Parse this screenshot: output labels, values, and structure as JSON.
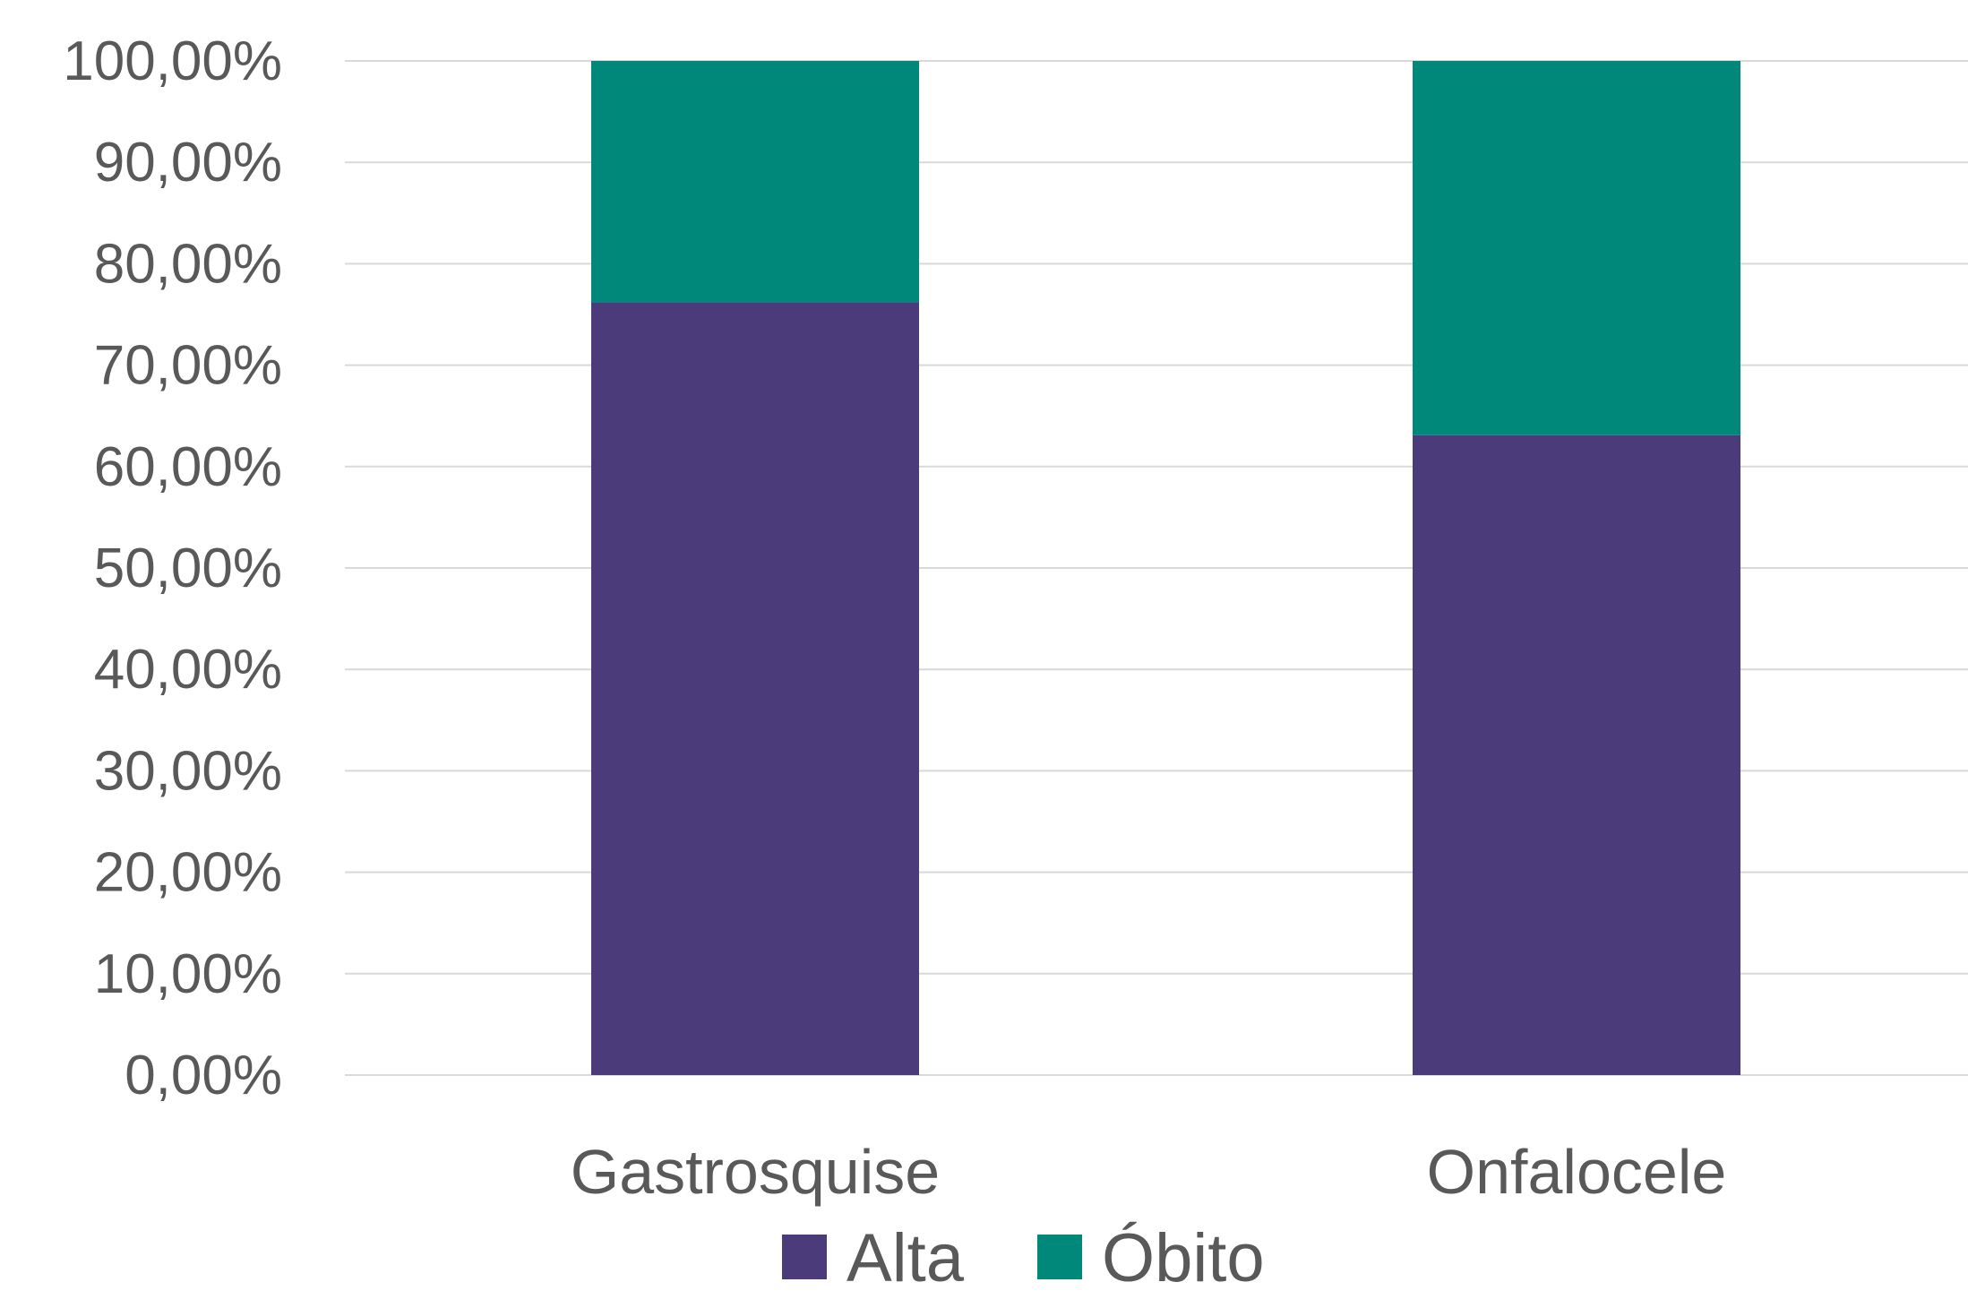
{
  "chart_data": {
    "type": "bar",
    "stacked": true,
    "categories": [
      "Gastrosquise",
      "Onfalocele"
    ],
    "series": [
      {
        "name": "Alta",
        "values": [
          76.2,
          63.1
        ],
        "color": "#4b3b7a"
      },
      {
        "name": "Óbito",
        "values": [
          23.8,
          36.9
        ],
        "color": "#00897b"
      }
    ],
    "ylim": [
      0,
      100
    ],
    "yticks": [
      0,
      10,
      20,
      30,
      40,
      50,
      60,
      70,
      80,
      90,
      100
    ],
    "ytick_labels": [
      "0,00%",
      "10,00%",
      "20,00%",
      "30,00%",
      "40,00%",
      "50,00%",
      "60,00%",
      "70,00%",
      "80,00%",
      "90,00%",
      "100,00%"
    ],
    "grid": true,
    "legend_position": "bottom",
    "title": "",
    "xlabel": "",
    "ylabel": ""
  }
}
